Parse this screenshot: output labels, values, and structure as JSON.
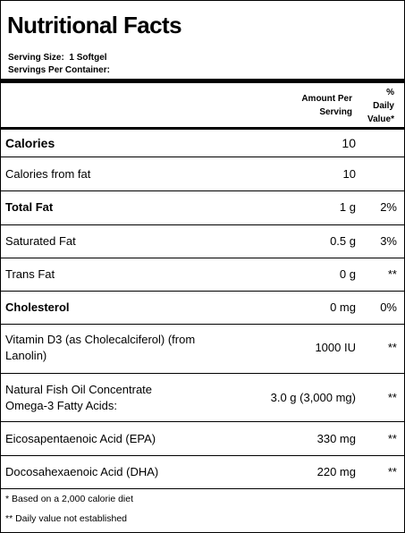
{
  "title": "Nutritional Facts",
  "serving_size": "Serving Size:  1 Softgel",
  "servings_per_container": "Servings Per Container:",
  "header": {
    "amount": [
      "Amount Per",
      "Serving"
    ],
    "daily_value": [
      "%",
      "Daily",
      "Value*"
    ]
  },
  "rows": [
    {
      "name": "Calories",
      "amount": "10",
      "dv": ""
    },
    {
      "name": "Calories from fat",
      "amount": "10",
      "dv": ""
    },
    {
      "name": "Total Fat",
      "amount": "1 g",
      "dv": "2%"
    },
    {
      "name": "Saturated Fat",
      "amount": "0.5 g",
      "dv": "3%"
    },
    {
      "name": "Trans Fat",
      "amount": "0 g",
      "dv": "**"
    },
    {
      "name": "Cholesterol",
      "amount": "0 mg",
      "dv": "0%"
    },
    {
      "name": [
        "Vitamin D3 (as Cholecalciferol) (from",
        "Lanolin)"
      ],
      "amount": "1000 IU",
      "dv": "**"
    },
    {
      "name": [
        "Natural Fish Oil Concentrate",
        "Omega-3 Fatty Acids:"
      ],
      "amount": "3.0 g (3,000 mg)",
      "dv": "**"
    },
    {
      "name": "Eicosapentaenoic Acid (EPA)",
      "amount": "330 mg",
      "dv": "**"
    },
    {
      "name": "Docosahexaenoic Acid (DHA)",
      "amount": "220 mg",
      "dv": "**"
    }
  ],
  "footnotes": [
    "* Based on a 2,000 calorie diet",
    "** Daily value not established"
  ]
}
